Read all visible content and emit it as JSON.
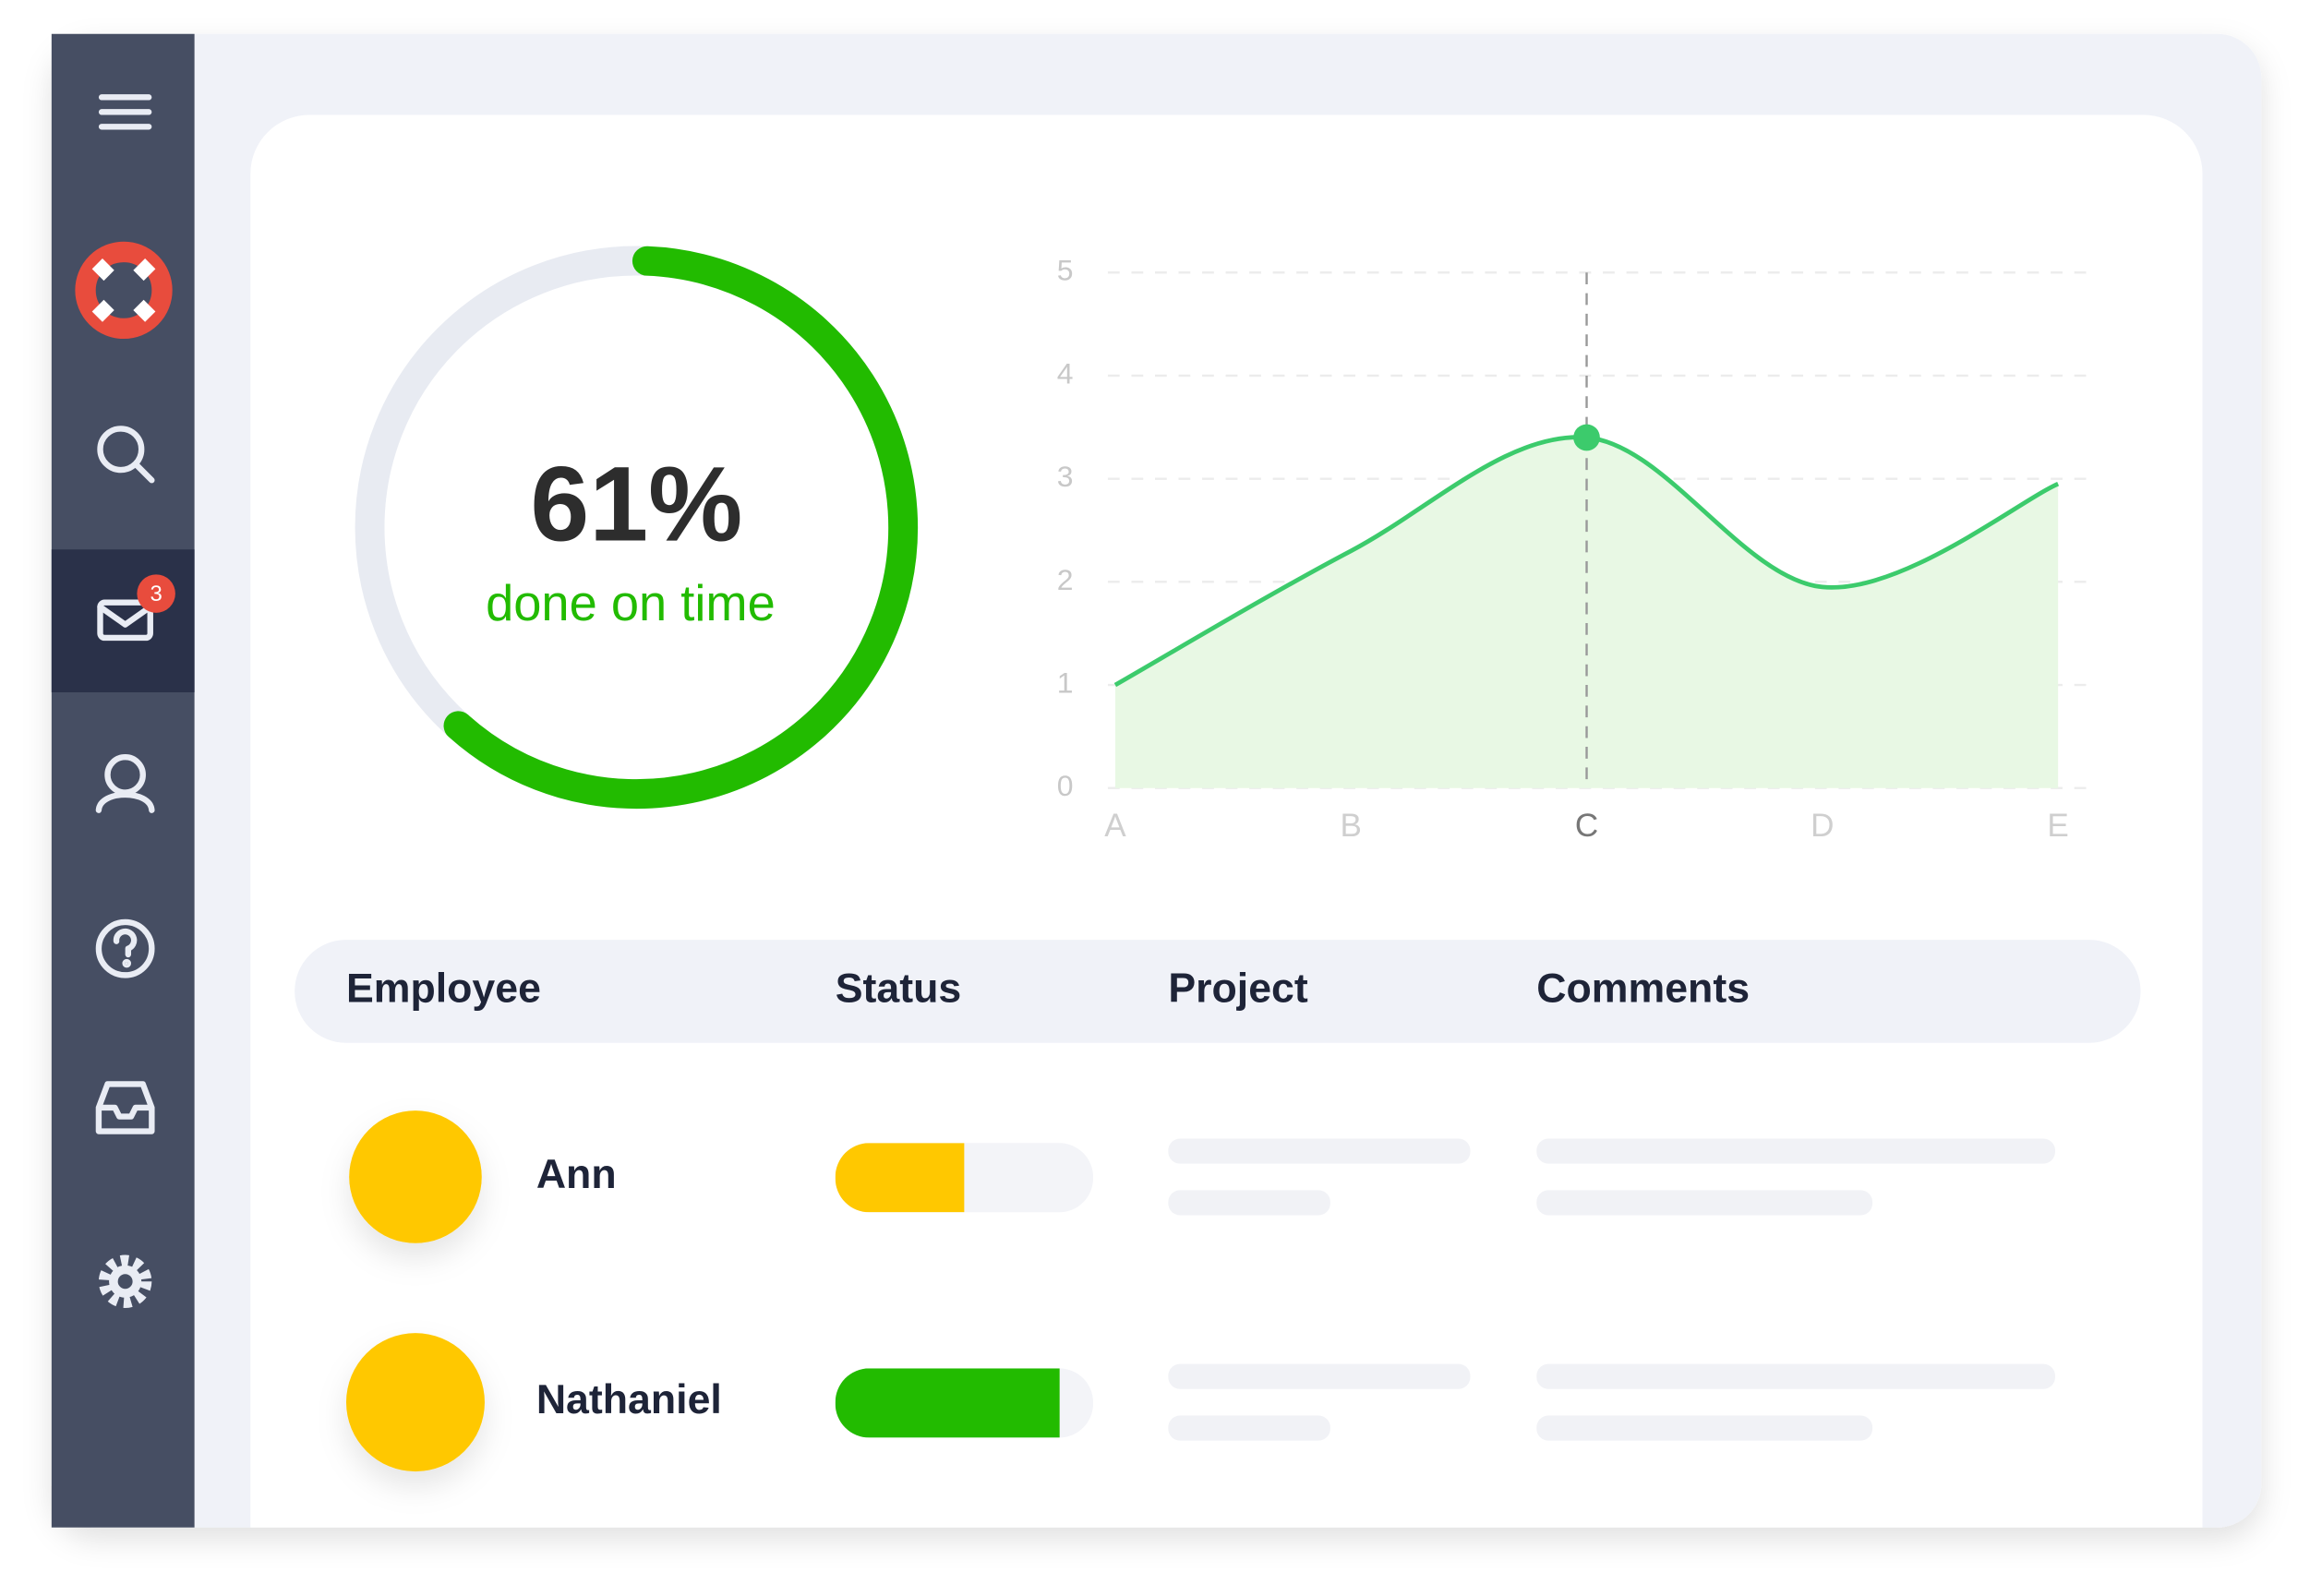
{
  "sidebar": {
    "badge": "3"
  },
  "progress": {
    "value": 61,
    "value_label": "61%",
    "caption": "done on time",
    "color": "#22bb00",
    "track_color": "#e8ebf2"
  },
  "chart_data": {
    "type": "line",
    "categories": [
      "A",
      "B",
      "C",
      "D",
      "E"
    ],
    "series": [
      {
        "color": "#3ccb6c",
        "values": [
          1.0,
          2.3,
          3.4,
          1.95,
          2.95
        ]
      }
    ],
    "area_color": "#e8f8e4",
    "highlight": "C",
    "ylim": [
      0,
      5
    ],
    "yticks": [
      0,
      1,
      2,
      3,
      4,
      5
    ],
    "grid": true
  },
  "table": {
    "columns": [
      "Employee",
      "Status",
      "Project",
      "Comments"
    ],
    "rows": [
      {
        "name": "Ann",
        "status": 50,
        "status_color": "#ffc800",
        "avatar_color": "#ffc800"
      },
      {
        "name": "Nathaniel",
        "status": 87,
        "status_color": "#22bb00",
        "avatar_color": "#ffc800"
      }
    ]
  }
}
